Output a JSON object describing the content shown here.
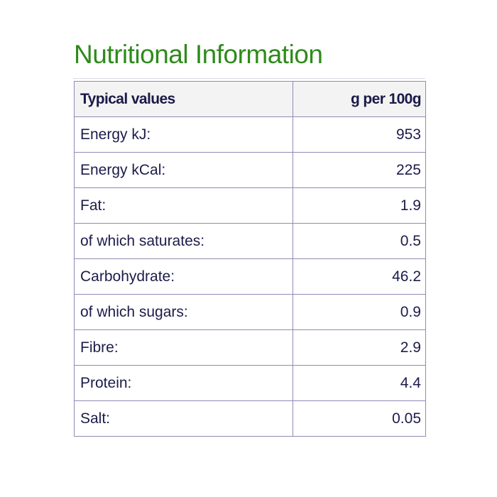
{
  "title": "Nutritional Information",
  "colors": {
    "title": "#2e8b1a",
    "text": "#1c1c4a",
    "border": "#8e8bb4",
    "header_bg": "#f3f3f3"
  },
  "table": {
    "header": {
      "label": "Typical values",
      "value": "g per 100g"
    },
    "rows": [
      {
        "label": "Energy kJ:",
        "value": "953"
      },
      {
        "label": "Energy kCal:",
        "value": "225"
      },
      {
        "label": "Fat:",
        "value": "1.9"
      },
      {
        "label": "of which saturates:",
        "value": "0.5"
      },
      {
        "label": "Carbohydrate:",
        "value": "46.2"
      },
      {
        "label": "of which sugars:",
        "value": "0.9"
      },
      {
        "label": "Fibre:",
        "value": "2.9"
      },
      {
        "label": "Protein:",
        "value": "4.4"
      },
      {
        "label": "Salt:",
        "value": "0.05"
      }
    ]
  }
}
